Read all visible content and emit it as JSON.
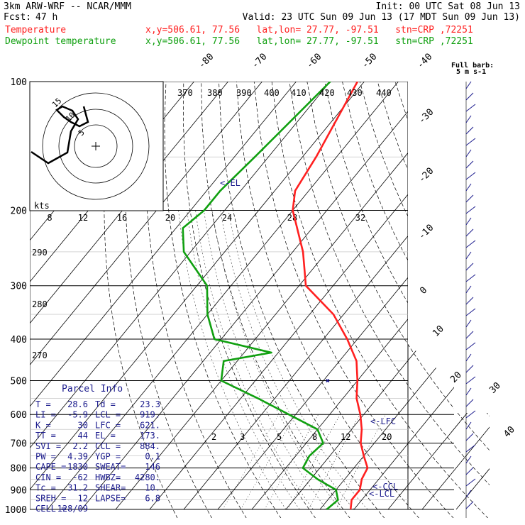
{
  "header": {
    "model": "3km ARW-WRF -- NCAR/MMM",
    "init": "Init: 00 UTC Sat 08 Jun 13",
    "fcst_label": "Fcst:",
    "fcst_value": "47 h",
    "valid": "Valid: 23 UTC Sun 09 Jun 13 (17 MDT Sun 09 Jun 13)",
    "temp_label": "Temperature",
    "temp_loc": "x,y=506.61, 77.56   lat,lon= 27.77, -97.51   stn=CRP ,72251",
    "dew_label": "Dewpoint temperature",
    "dew_loc": "x,y=506.61, 77.56   lat,lon= 27.77, -97.51   stn=CRP ,72251"
  },
  "colors": {
    "temperature": "#ff2020",
    "dewpoint": "#10a010",
    "parcel": "#1a1a8c",
    "grid": "#000000"
  },
  "chart_data": {
    "type": "line",
    "pressure_labels": [
      "100",
      "200",
      "300",
      "400",
      "500",
      "600",
      "700",
      "800",
      "900",
      "1000"
    ],
    "isotherm_labels": [
      "-80",
      "-70",
      "-60",
      "-50",
      "-40",
      "-30",
      "-20",
      "-10",
      "0",
      "10",
      "20",
      "30",
      "40"
    ],
    "dry_adiabat_labels": [
      "370",
      "380",
      "390",
      "400",
      "410",
      "420",
      "430",
      "440",
      "290",
      "280",
      "270"
    ],
    "mixing_ratio_labels": [
      "2",
      "3",
      "5",
      "8",
      "12",
      "20"
    ],
    "hodograph": {
      "units": "kts",
      "speed_labels": [
        "8",
        "12",
        "16",
        "20",
        "24",
        "28",
        "32"
      ],
      "ring_labels": [
        "5",
        "10",
        "15"
      ]
    },
    "barb_title": "Full barb:",
    "barb_value": "5 m s-1",
    "annotations": [
      "<-EL",
      "<-LFC",
      "<-CCL",
      "<-LCL"
    ],
    "series": [
      {
        "name": "Temperature",
        "values": [
          [
            100,
            -72
          ],
          [
            150,
            -66
          ],
          [
            180,
            -64
          ],
          [
            200,
            -60
          ],
          [
            250,
            -47
          ],
          [
            300,
            -38
          ],
          [
            350,
            -23
          ],
          [
            400,
            -13
          ],
          [
            450,
            -5
          ],
          [
            500,
            0
          ],
          [
            550,
            4
          ],
          [
            600,
            9
          ],
          [
            650,
            13
          ],
          [
            700,
            16
          ],
          [
            750,
            20
          ],
          [
            800,
            24
          ],
          [
            850,
            25
          ],
          [
            900,
            27
          ],
          [
            950,
            27
          ],
          [
            1000,
            29
          ]
        ]
      },
      {
        "name": "Dewpoint",
        "values": [
          [
            100,
            -80
          ],
          [
            150,
            -84
          ],
          [
            180,
            -86
          ],
          [
            200,
            -86
          ],
          [
            220,
            -88
          ],
          [
            250,
            -82
          ],
          [
            300,
            -67
          ],
          [
            350,
            -60
          ],
          [
            400,
            -52
          ],
          [
            430,
            -32
          ],
          [
            450,
            -44
          ],
          [
            500,
            -40
          ],
          [
            550,
            -25
          ],
          [
            600,
            -12
          ],
          [
            650,
            0
          ],
          [
            700,
            5
          ],
          [
            750,
            4
          ],
          [
            800,
            5
          ],
          [
            850,
            12
          ],
          [
            900,
            20
          ],
          [
            950,
            23
          ],
          [
            1000,
            22
          ]
        ]
      }
    ]
  },
  "parcel": {
    "title": "Parcel Info",
    "rows": [
      [
        "T   =",
        "28.6",
        "Td  =",
        "23.3"
      ],
      [
        "LI  =",
        "-5.9",
        "LCL =",
        "919."
      ],
      [
        "K   =",
        "30",
        "LFC =",
        "621."
      ],
      [
        "TT  =",
        "44",
        "EL  =",
        "173."
      ],
      [
        "SVI =",
        "2.2",
        "CCL =",
        "884."
      ],
      [
        "PW  =",
        "4.39",
        "YGP =",
        "0.1"
      ],
      [
        "CAPE =",
        "1830",
        "SWEAT=",
        "146"
      ],
      [
        "CIN =",
        "-62",
        "HWBZ=",
        "4280."
      ],
      [
        "Tc  =",
        "31.2",
        "SHEAR=",
        "10."
      ],
      [
        "SREH =",
        "12",
        "LAPSE=",
        "6.8"
      ],
      [
        "CELL =",
        "128/09",
        "",
        ""
      ]
    ]
  }
}
